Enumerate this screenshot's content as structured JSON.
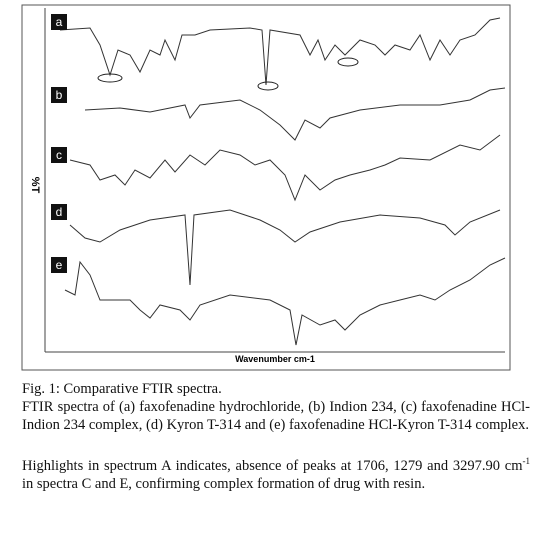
{
  "figure": {
    "panels": [
      "a",
      "b",
      "c",
      "d",
      "e"
    ],
    "y_label": "%T",
    "x_label": "Wavenumber cm-1"
  },
  "caption": {
    "title": "Fig. 1: Comparative FTIR spectra.",
    "description": "FTIR spectra of (a) faxofenadine hydrochloride, (b) Indion 234, (c) faxofenadine HCl-Indion 234 complex, (d) Kyron T-314 and (e) faxofenadine HCl-Kyron T-314 complex.",
    "highlights": {
      "text": "Highlights in spectrum A indicates, absence of peaks at 1706, 1279 and 3297.90 cm",
      "superscript": "-1",
      "text_end": " in spectra C and E, confirming complex formation of drug with resin."
    }
  }
}
